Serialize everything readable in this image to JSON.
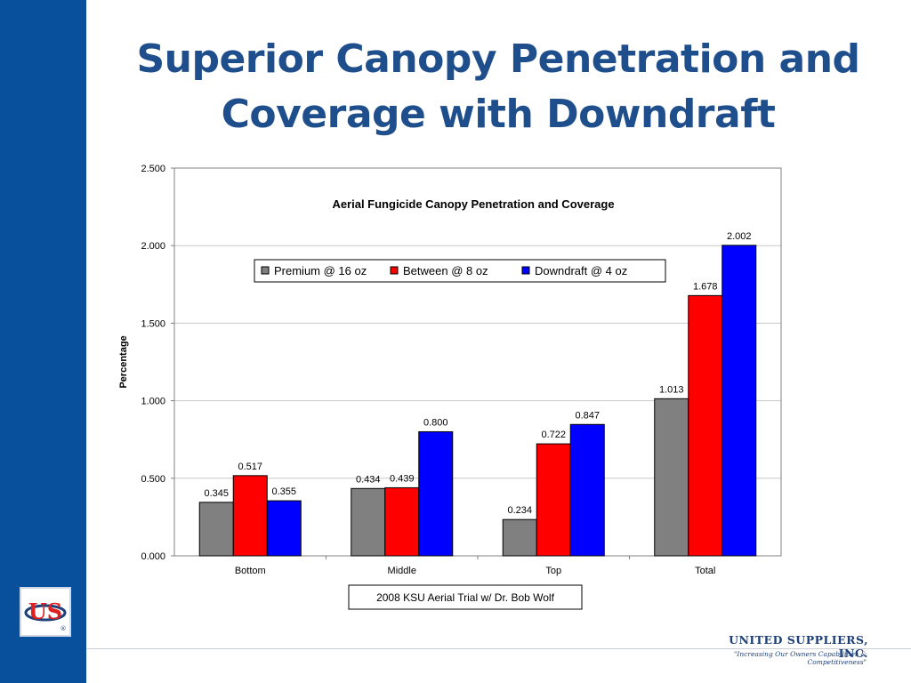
{
  "slide": {
    "title_line1": "Superior Canopy Penetration and",
    "title_line2": "Coverage with Downdraft"
  },
  "logo": {
    "text": "US",
    "mark": "®"
  },
  "footer": {
    "company": "UNITED SUPPLIERS, INC.",
    "tagline": "\"Increasing Our Owners Capabilities & Competitiveness\""
  },
  "colors": {
    "sidebar": "#08509b",
    "title": "#1f4e8c",
    "premium": "#808080",
    "between": "#ff0000",
    "downdraft": "#0000ff"
  },
  "chart_data": {
    "type": "bar",
    "title": "Aerial Fungicide Canopy Penetration and Coverage",
    "xlabel": "",
    "ylabel": "Percentage",
    "ylim": [
      0,
      2.5
    ],
    "yticks": [
      "0.000",
      "0.500",
      "1.000",
      "1.500",
      "2.000",
      "2.500"
    ],
    "categories": [
      "Bottom",
      "Middle",
      "Top",
      "Total"
    ],
    "series": [
      {
        "name": "Premium @ 16 oz",
        "color": "#808080",
        "values": [
          0.345,
          0.434,
          0.234,
          1.013
        ],
        "labels": [
          "0.345",
          "0.434",
          "0.234",
          "1.013"
        ]
      },
      {
        "name": "Between @ 8 oz",
        "color": "#ff0000",
        "values": [
          0.517,
          0.439,
          0.722,
          1.678
        ],
        "labels": [
          "0.517",
          "0.439",
          "0.722",
          "1.678"
        ]
      },
      {
        "name": "Downdraft @ 4 oz",
        "color": "#0000ff",
        "values": [
          0.355,
          0.8,
          0.847,
          2.002
        ],
        "labels": [
          "0.355",
          "0.800",
          "0.847",
          "2.002"
        ]
      }
    ],
    "grid": true,
    "legend_position": "top-center",
    "note": "2008 KSU Aerial Trial w/ Dr. Bob Wolf"
  }
}
